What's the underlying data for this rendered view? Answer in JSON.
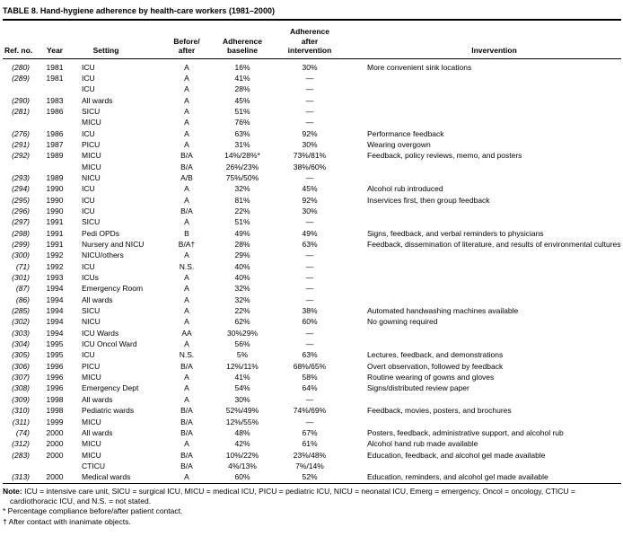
{
  "page": {
    "title": "TABLE 8. Hand-hygiene adherence by health-care workers (1981–2000)"
  },
  "table": {
    "headers": {
      "ref": "Ref. no.",
      "year": "Year",
      "setting": "Setting",
      "ba": "Before/\nafter",
      "baseline": "Adherence\nbaseline",
      "after": "Adherence\nafter\nintervention",
      "intervention": "Invervention"
    },
    "rows": [
      {
        "ref": "(280)",
        "year": "1981",
        "setting": "ICU",
        "ba": "A",
        "baseline": "16%",
        "after": "30%",
        "intervention": "More convenient sink locations"
      },
      {
        "ref": "(289)",
        "year": "1981",
        "setting": "ICU",
        "ba": "A",
        "baseline": "41%",
        "after": "—",
        "intervention": ""
      },
      {
        "ref": "",
        "year": "",
        "setting": "ICU",
        "ba": "A",
        "baseline": "28%",
        "after": "—",
        "intervention": ""
      },
      {
        "ref": "(290)",
        "year": "1983",
        "setting": "All wards",
        "ba": "A",
        "baseline": "45%",
        "after": "—",
        "intervention": ""
      },
      {
        "ref": "(281)",
        "year": "1986",
        "setting": "SICU",
        "ba": "A",
        "baseline": "51%",
        "after": "—",
        "intervention": ""
      },
      {
        "ref": "",
        "year": "",
        "setting": "MICU",
        "ba": "A",
        "baseline": "76%",
        "after": "—",
        "intervention": ""
      },
      {
        "ref": "(276)",
        "year": "1986",
        "setting": "ICU",
        "ba": "A",
        "baseline": "63%",
        "after": "92%",
        "intervention": "Performance feedback"
      },
      {
        "ref": "(291)",
        "year": "1987",
        "setting": "PICU",
        "ba": "A",
        "baseline": "31%",
        "after": "30%",
        "intervention": "Wearing overgown"
      },
      {
        "ref": "(292)",
        "year": "1989",
        "setting": "MICU",
        "ba": "B/A",
        "baseline": "14%/28%*",
        "after": "73%/81%",
        "intervention": "Feedback, policy reviews, memo, and posters"
      },
      {
        "ref": "",
        "year": "",
        "setting": "MICU",
        "ba": "B/A",
        "baseline": "26%/23%",
        "after": "38%/60%",
        "intervention": ""
      },
      {
        "ref": "(293)",
        "year": "1989",
        "setting": "NICU",
        "ba": "A/B",
        "baseline": "75%/50%",
        "after": "—",
        "intervention": ""
      },
      {
        "ref": "(294)",
        "year": "1990",
        "setting": "ICU",
        "ba": "A",
        "baseline": "32%",
        "after": "45%",
        "intervention": "Alcohol rub introduced"
      },
      {
        "ref": "(295)",
        "year": "1990",
        "setting": "ICU",
        "ba": "A",
        "baseline": "81%",
        "after": "92%",
        "intervention": "Inservices first, then group feedback"
      },
      {
        "ref": "(296)",
        "year": "1990",
        "setting": "ICU",
        "ba": "B/A",
        "baseline": "22%",
        "after": "30%",
        "intervention": ""
      },
      {
        "ref": "(297)",
        "year": "1991",
        "setting": "SICU",
        "ba": "A",
        "baseline": "51%",
        "after": "—",
        "intervention": ""
      },
      {
        "ref": "(298)",
        "year": "1991",
        "setting": "Pedi OPDs",
        "ba": "B",
        "baseline": "49%",
        "after": "49%",
        "intervention": "Signs, feedback, and verbal reminders to physicians"
      },
      {
        "ref": "(299)",
        "year": "1991",
        "setting": "Nursery and NICU",
        "ba": "B/A†",
        "baseline": "28%",
        "after": "63%",
        "intervention": "Feedback, dissemination of literature, and results of environmental cultures"
      },
      {
        "ref": "(300)",
        "year": "1992",
        "setting": "NICU/others",
        "ba": "A",
        "baseline": "29%",
        "after": "—",
        "intervention": ""
      },
      {
        "ref": "(71)",
        "year": "1992",
        "setting": "ICU",
        "ba": "N.S.",
        "baseline": "40%",
        "after": "—",
        "intervention": ""
      },
      {
        "ref": "(301)",
        "year": "1993",
        "setting": "ICUs",
        "ba": "A",
        "baseline": "40%",
        "after": "—",
        "intervention": ""
      },
      {
        "ref": "(87)",
        "year": "1994",
        "setting": "Emergency Room",
        "ba": "A",
        "baseline": "32%",
        "after": "—",
        "intervention": ""
      },
      {
        "ref": "(86)",
        "year": "1994",
        "setting": "All wards",
        "ba": "A",
        "baseline": "32%",
        "after": "—",
        "intervention": ""
      },
      {
        "ref": "(285)",
        "year": "1994",
        "setting": "SICU",
        "ba": "A",
        "baseline": "22%",
        "after": "38%",
        "intervention": "Automated handwashing machines available"
      },
      {
        "ref": "(302)",
        "year": "1994",
        "setting": "NICU",
        "ba": "A",
        "baseline": "62%",
        "after": "60%",
        "intervention": "No gowning required"
      },
      {
        "ref": "(303)",
        "year": "1994",
        "setting": "ICU Wards",
        "ba": "AA",
        "baseline": "30%29%",
        "after": "—",
        "intervention": ""
      },
      {
        "ref": "(304)",
        "year": "1995",
        "setting": "ICU Oncol Ward",
        "ba": "A",
        "baseline": "56%",
        "after": "—",
        "intervention": ""
      },
      {
        "ref": "(305)",
        "year": "1995",
        "setting": "ICU",
        "ba": "N.S.",
        "baseline": "5%",
        "after": "63%",
        "intervention": "Lectures, feedback, and demonstrations"
      },
      {
        "ref": "(306)",
        "year": "1996",
        "setting": "PICU",
        "ba": "B/A",
        "baseline": "12%/11%",
        "after": "68%/65%",
        "intervention": "Overt observation, followed by feedback"
      },
      {
        "ref": "(307)",
        "year": "1996",
        "setting": "MICU",
        "ba": "A",
        "baseline": "41%",
        "after": "58%",
        "intervention": "Routine wearing of gowns and gloves"
      },
      {
        "ref": "(308)",
        "year": "1996",
        "setting": "Emergency Dept",
        "ba": "A",
        "baseline": "54%",
        "after": "64%",
        "intervention": "Signs/distributed review paper"
      },
      {
        "ref": "(309)",
        "year": "1998",
        "setting": "All wards",
        "ba": "A",
        "baseline": "30%",
        "after": "—",
        "intervention": ""
      },
      {
        "ref": "(310)",
        "year": "1998",
        "setting": "Pediatric wards",
        "ba": "B/A",
        "baseline": "52%/49%",
        "after": "74%/69%",
        "intervention": "Feedback, movies, posters, and brochures"
      },
      {
        "ref": "(311)",
        "year": "1999",
        "setting": "MICU",
        "ba": "B/A",
        "baseline": "12%/55%",
        "after": "—",
        "intervention": ""
      },
      {
        "ref": "(74)",
        "year": "2000",
        "setting": "All wards",
        "ba": "B/A",
        "baseline": "48%",
        "after": "67%",
        "intervention": "Posters, feedback, administrative support, and alcohol rub"
      },
      {
        "ref": "(312)",
        "year": "2000",
        "setting": "MICU",
        "ba": "A",
        "baseline": "42%",
        "after": "61%",
        "intervention": "Alcohol hand rub made available"
      },
      {
        "ref": "(283)",
        "year": "2000",
        "setting": "MICU",
        "ba": "B/A",
        "baseline": "10%/22%",
        "after": "23%/48%",
        "intervention": "Education, feedback, and alcohol gel made available"
      },
      {
        "ref": "",
        "year": "",
        "setting": "CTICU",
        "ba": "B/A",
        "baseline": "4%/13%",
        "after": "7%/14%",
        "intervention": ""
      },
      {
        "ref": "(313)",
        "year": "2000",
        "setting": "Medical wards",
        "ba": "A",
        "baseline": "60%",
        "after": "52%",
        "intervention": "Education, reminders, and alcohol gel made available"
      }
    ]
  },
  "notes": {
    "note_label": "Note:",
    "note_text": " ICU = intensive care unit, SICU = surgical ICU, MICU = medical ICU, PICU = pediatric ICU, NICU = neonatal ICU, Emerg = emergency, Oncol = oncology, CTICU = cardiothoracic ICU, and N.S. = not stated.",
    "footnote_star": "* Percentage compliance before/after patient contact.",
    "footnote_dagger": "† After contact with inanimate objects."
  }
}
